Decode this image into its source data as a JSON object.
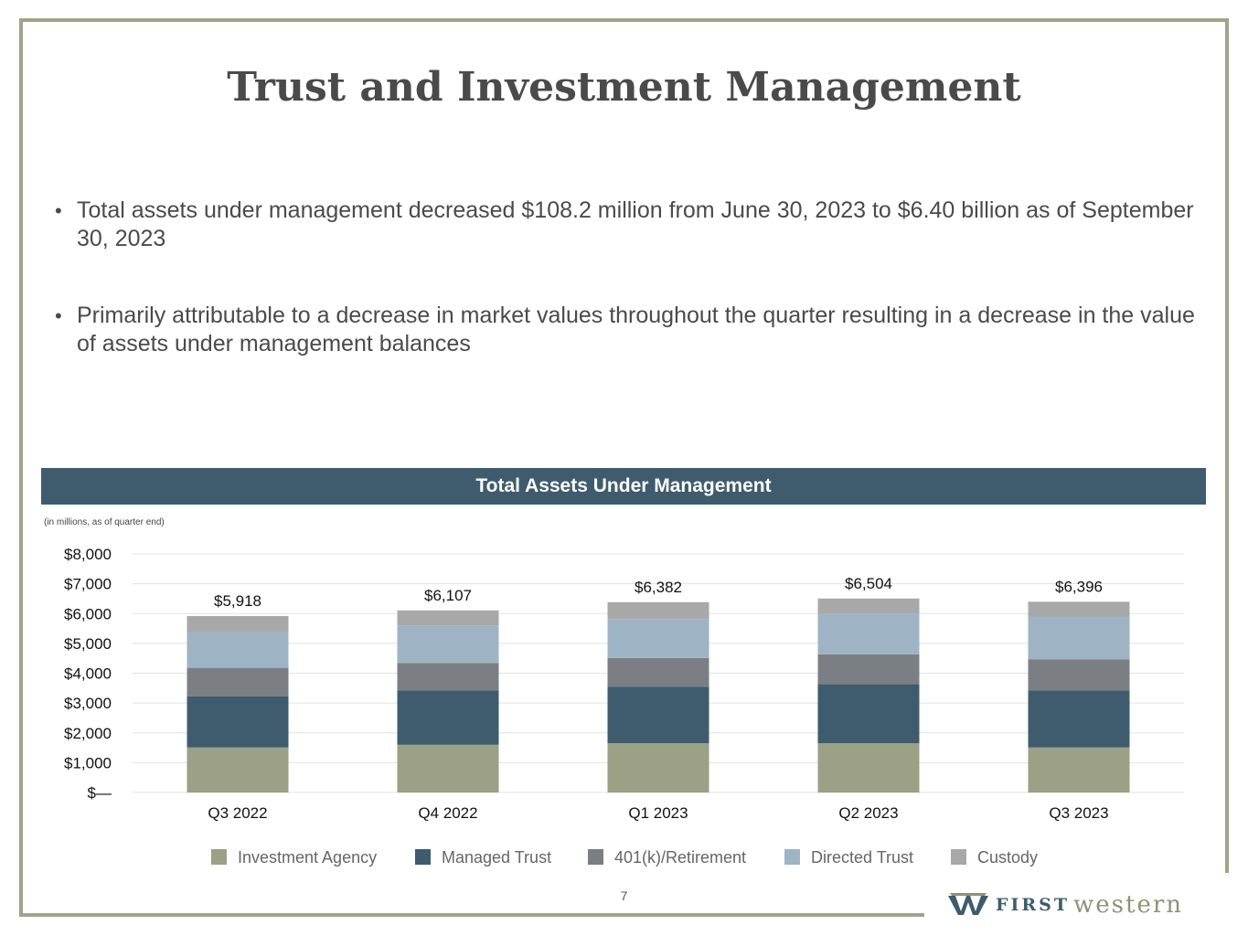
{
  "slide": {
    "title": "Trust and Investment Management",
    "page_number": "7"
  },
  "bullets": [
    "Total assets under management decreased $108.2 million from June 30, 2023 to $6.40 billion as of September 30, 2023",
    "Primarily attributable to a decrease in market values throughout the quarter resulting in a decrease in the value of assets under management balances"
  ],
  "chart_header": "Total Assets Under Management",
  "chart_note": "(in millions, as of quarter end)",
  "logo": {
    "first": "FIRST",
    "western": "western"
  },
  "colors": {
    "frame": "#a1a48a",
    "header": "#3e5c6e",
    "series": [
      "#9ca085",
      "#3e5c6e",
      "#7b7f83",
      "#9eb4c4",
      "#a8a8a8"
    ]
  },
  "chart_data": {
    "type": "bar",
    "stacked": true,
    "title": "Total Assets Under Management",
    "xlabel": "",
    "ylabel": "",
    "ylim": [
      0,
      8000
    ],
    "yticks": [
      0,
      1000,
      2000,
      3000,
      4000,
      5000,
      6000,
      7000,
      8000
    ],
    "ytick_labels": [
      "$—",
      "$1,000",
      "$2,000",
      "$3,000",
      "$4,000",
      "$5,000",
      "$6,000",
      "$7,000",
      "$8,000"
    ],
    "categories": [
      "Q3 2022",
      "Q4 2022",
      "Q1 2023",
      "Q2 2023",
      "Q3 2023"
    ],
    "series": [
      {
        "name": "Investment Agency",
        "values": [
          1510,
          1600,
          1650,
          1650,
          1510
        ]
      },
      {
        "name": "Managed Trust",
        "values": [
          1710,
          1820,
          1900,
          1980,
          1910
        ]
      },
      {
        "name": "401(k)/Retirement",
        "values": [
          960,
          920,
          960,
          1000,
          1040
        ]
      },
      {
        "name": "Directed Trust",
        "values": [
          1200,
          1260,
          1310,
          1370,
          1440
        ]
      },
      {
        "name": "Custody",
        "values": [
          538,
          507,
          562,
          504,
          496
        ]
      }
    ],
    "totals": [
      "$5,918",
      "$6,107",
      "$6,382",
      "$6,504",
      "$6,396"
    ],
    "legend": "bottom",
    "grid": true
  }
}
